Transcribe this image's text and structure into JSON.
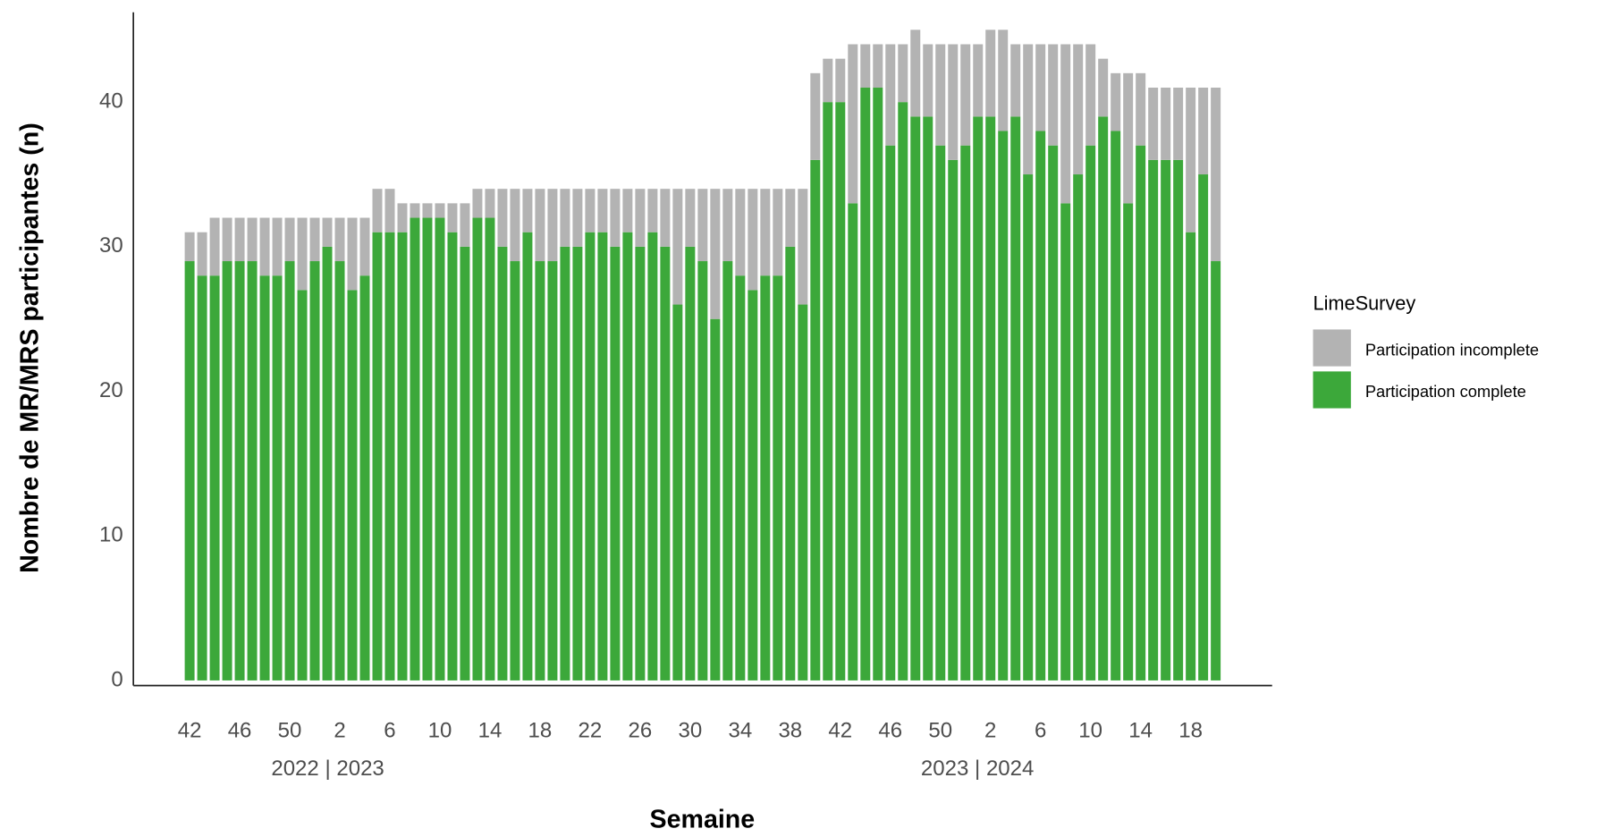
{
  "chart_data": {
    "type": "stacked_bar",
    "x_label": "Semaine",
    "y_label": "Nombre de MR/MRS participantes (n)",
    "group_labels": [
      "2022 | 2023",
      "2023 | 2024"
    ],
    "legend_title": "LimeSurvey",
    "categories": [
      "42",
      null,
      null,
      null,
      "46",
      null,
      null,
      null,
      "50",
      null,
      null,
      null,
      "2",
      null,
      null,
      null,
      "6",
      null,
      null,
      null,
      "10",
      null,
      null,
      null,
      "14",
      null,
      null,
      null,
      "18",
      null,
      null,
      null,
      "22",
      null,
      null,
      null,
      "26",
      null,
      null,
      null,
      "30",
      null,
      null,
      null,
      "34",
      null,
      null,
      null,
      "38",
      null,
      null,
      null,
      "42",
      null,
      null,
      null,
      "46",
      null,
      null,
      null,
      "50",
      null,
      null,
      null,
      "2",
      null,
      null,
      null,
      "6",
      null,
      null,
      null,
      "10",
      null,
      null,
      null,
      "14",
      null,
      null,
      null,
      "18",
      null,
      null
    ],
    "series": [
      {
        "name": "Participation incomplete",
        "color": "#b3b3b3",
        "values": [
          2,
          3,
          4,
          3,
          3,
          3,
          4,
          4,
          3,
          5,
          3,
          2,
          3,
          5,
          4,
          3,
          3,
          2,
          1,
          1,
          1,
          2,
          3,
          2,
          2,
          4,
          5,
          3,
          5,
          5,
          4,
          4,
          3,
          3,
          4,
          3,
          4,
          3,
          4,
          8,
          4,
          5,
          9,
          5,
          6,
          7,
          6,
          6,
          4,
          8,
          6,
          3,
          3,
          11,
          3,
          3,
          7,
          4,
          6,
          5,
          7,
          8,
          7,
          5,
          6,
          7,
          5,
          9,
          6,
          7,
          11,
          9,
          7,
          4,
          4,
          9,
          5,
          5,
          5,
          5,
          10,
          6,
          12
        ]
      },
      {
        "name": "Participation complete",
        "color": "#3ca83a",
        "values": [
          29,
          28,
          28,
          29,
          29,
          29,
          28,
          28,
          29,
          27,
          29,
          30,
          29,
          27,
          28,
          31,
          31,
          31,
          32,
          32,
          32,
          31,
          30,
          32,
          32,
          30,
          29,
          31,
          29,
          29,
          30,
          30,
          31,
          31,
          30,
          31,
          30,
          31,
          30,
          26,
          30,
          29,
          25,
          29,
          28,
          27,
          28,
          28,
          30,
          26,
          36,
          40,
          40,
          33,
          41,
          41,
          37,
          40,
          39,
          39,
          37,
          36,
          37,
          39,
          39,
          38,
          39,
          35,
          38,
          37,
          33,
          35,
          37,
          39,
          38,
          33,
          37,
          36,
          36,
          36,
          31,
          35,
          29
        ]
      }
    ],
    "ylim": [
      0,
      46
    ],
    "yticks": [
      0,
      10,
      20,
      30,
      40
    ],
    "grid": false
  }
}
